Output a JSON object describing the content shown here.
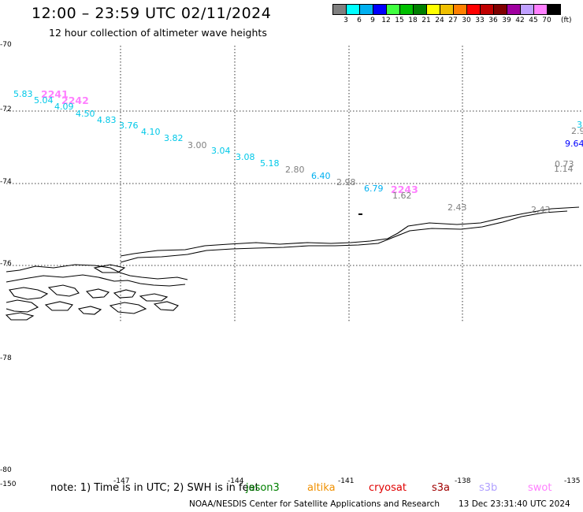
{
  "header": {
    "title": "12:00 – 23:59 UTC 02/11/2024",
    "subtitle": "12 hour collection of altimeter wave heights"
  },
  "color_scale": {
    "labels": [
      "3",
      "6",
      "9",
      "12",
      "15",
      "18",
      "21",
      "24",
      "27",
      "30",
      "33",
      "36",
      "39",
      "42",
      "45",
      "70"
    ],
    "unit": "(ft)",
    "colors": [
      "#808080",
      "#00ffff",
      "#00b0f0",
      "#0000ff",
      "#40ff40",
      "#00c000",
      "#008000",
      "#ffff00",
      "#f0c000",
      "#ff8000",
      "#ff0000",
      "#c00000",
      "#800000",
      "#a000a0",
      "#c0a0ff",
      "#ff80ff",
      "#000000"
    ]
  },
  "axes": {
    "lat_labels": [
      "-70",
      "-72",
      "-74",
      "-76",
      "-78",
      "-80"
    ],
    "lon_labels": [
      "-150",
      "-147",
      "-144",
      "-141",
      "-138",
      "-135"
    ]
  },
  "track_labels": [
    {
      "text": "2241",
      "color": "#ff80ff"
    },
    {
      "text": "2242",
      "color": "#ff80ff"
    },
    {
      "text": "2243",
      "color": "#ff80ff"
    }
  ],
  "observations": [
    {
      "text": "5.83",
      "color": "#00c8e8"
    },
    {
      "text": "5.04",
      "color": "#00c8e8"
    },
    {
      "text": "4.09",
      "color": "#00c8e8"
    },
    {
      "text": "4.50",
      "color": "#00c8e8"
    },
    {
      "text": "4.83",
      "color": "#00c8e8"
    },
    {
      "text": "3.76",
      "color": "#00c8e8"
    },
    {
      "text": "4.10",
      "color": "#00c8e8"
    },
    {
      "text": "3.82",
      "color": "#00c8e8"
    },
    {
      "text": "3.00",
      "color": "#808080"
    },
    {
      "text": "3.04",
      "color": "#00c8e8"
    },
    {
      "text": "3.08",
      "color": "#00c8e8"
    },
    {
      "text": "5.18",
      "color": "#00c8e8"
    },
    {
      "text": "2.80",
      "color": "#808080"
    },
    {
      "text": "6.40",
      "color": "#00b0f0"
    },
    {
      "text": "2.98",
      "color": "#808080"
    },
    {
      "text": "6.79",
      "color": "#00b0f0"
    },
    {
      "text": "1.62",
      "color": "#808080"
    },
    {
      "text": "2.43",
      "color": "#808080"
    },
    {
      "text": "2.43",
      "color": "#808080"
    },
    {
      "text": "0.73",
      "color": "#808080"
    },
    {
      "text": "1.14",
      "color": "#808080"
    },
    {
      "text": "9.64",
      "color": "#0000ff"
    },
    {
      "text": "2.9",
      "color": "#808080"
    },
    {
      "text": "3",
      "color": "#00c8e8"
    }
  ],
  "footer": {
    "note": "note: 1) Time is in UTC; 2) SWH is in feet",
    "satellites": [
      {
        "name": "jason3",
        "color": "#008000"
      },
      {
        "name": "altika",
        "color": "#f09000"
      },
      {
        "name": "cryosat",
        "color": "#e00000"
      },
      {
        "name": "s3a",
        "color": "#a00000"
      },
      {
        "name": "s3b",
        "color": "#b0a0ff"
      },
      {
        "name": "swot",
        "color": "#ff80ff"
      }
    ],
    "credit": "NOAA/NESDIS Center for Satellite Applications and Research",
    "generated": "13 Dec 23:31:40 UTC 2024"
  }
}
